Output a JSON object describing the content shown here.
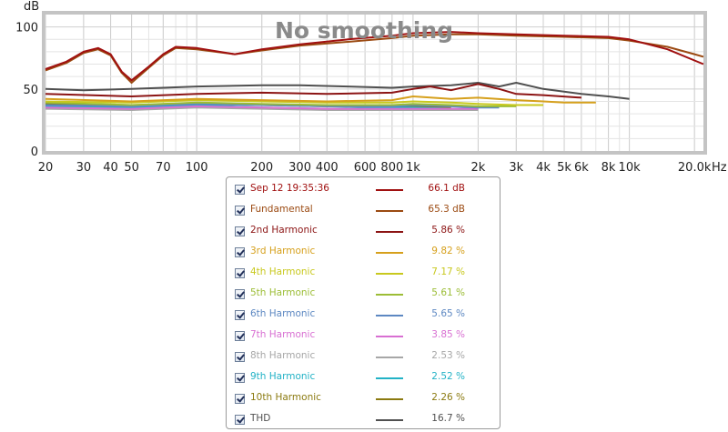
{
  "chart_data": {
    "type": "line",
    "title": "No smoothing",
    "ylabel": "dB",
    "xunit": "Hz",
    "xscale": "log",
    "xlim": [
      20,
      22000
    ],
    "ylim": [
      0,
      110
    ],
    "yticks": [
      0,
      50,
      100
    ],
    "ytick_labels": [
      "0",
      "50",
      "100"
    ],
    "xticks": [
      20,
      30,
      40,
      50,
      70,
      100,
      200,
      300,
      400,
      600,
      800,
      1000,
      2000,
      3000,
      4000,
      5000,
      6000,
      8000,
      10000,
      20000
    ],
    "xtick_labels": [
      "20",
      "30",
      "40",
      "50",
      "70",
      "100",
      "200",
      "300",
      "400",
      "600",
      "800",
      "1k",
      "2k",
      "3k",
      "4k",
      "5k",
      "6k",
      "8k",
      "10k",
      "20.0k"
    ],
    "grid": true,
    "legend_position": "bottom",
    "series": [
      {
        "name": "Sep 12 19:35:36",
        "value_label": "66.1 dB",
        "color": "#a01010",
        "x": [
          20,
          25,
          30,
          35,
          40,
          45,
          50,
          60,
          70,
          80,
          100,
          150,
          200,
          300,
          500,
          800,
          1000,
          1500,
          2000,
          3000,
          5000,
          8000,
          10000,
          15000,
          20000,
          22000
        ],
        "y": [
          66,
          72,
          80,
          83,
          78,
          64,
          57,
          68,
          78,
          84,
          83,
          78,
          82,
          86,
          90,
          93,
          95,
          96,
          95,
          94,
          93,
          92,
          90,
          82,
          73,
          70
        ]
      },
      {
        "name": "Fundamental",
        "value_label": "65.3 dB",
        "color": "#9b4a12",
        "x": [
          20,
          25,
          30,
          35,
          40,
          45,
          50,
          60,
          70,
          80,
          100,
          150,
          200,
          300,
          500,
          800,
          1000,
          1500,
          2000,
          3000,
          5000,
          8000,
          10000,
          15000,
          20000,
          22000
        ],
        "y": [
          65,
          71,
          79,
          82,
          77,
          63,
          55,
          67,
          77,
          83,
          82,
          78,
          81,
          85,
          88,
          91,
          93,
          94,
          94,
          93,
          92,
          91,
          89,
          84,
          78,
          76
        ]
      },
      {
        "name": "2nd Harmonic",
        "value_label": "5.86 %",
        "color": "#8c1414",
        "x": [
          20,
          50,
          100,
          200,
          400,
          800,
          1000,
          1200,
          1500,
          2000,
          2500,
          3000,
          4000,
          6000
        ],
        "y": [
          46,
          44,
          46,
          47,
          46,
          47,
          50,
          52,
          49,
          54,
          50,
          46,
          45,
          43
        ]
      },
      {
        "name": "3rd Harmonic",
        "value_label": "9.82 %",
        "color": "#d6a01c",
        "x": [
          20,
          50,
          100,
          200,
          400,
          800,
          1000,
          1500,
          2000,
          3000,
          4000,
          5000,
          7000
        ],
        "y": [
          42,
          40,
          42,
          41,
          40,
          41,
          44,
          42,
          43,
          41,
          40,
          39,
          39
        ]
      },
      {
        "name": "4th Harmonic",
        "value_label": "7.17 %",
        "color": "#c8c81e",
        "x": [
          20,
          50,
          100,
          200,
          400,
          800,
          1000,
          1500,
          2000,
          3000,
          4000
        ],
        "y": [
          40,
          39,
          41,
          40,
          39,
          39,
          40,
          39,
          38,
          37,
          37
        ]
      },
      {
        "name": "5th Harmonic",
        "value_label": "5.61 %",
        "color": "#9cbd36",
        "x": [
          20,
          50,
          100,
          200,
          400,
          800,
          1000,
          1500,
          2000,
          3000
        ],
        "y": [
          39,
          37,
          39,
          38,
          37,
          37,
          38,
          37,
          36,
          36
        ]
      },
      {
        "name": "6th Harmonic",
        "value_label": "5.65 %",
        "color": "#5d88c2",
        "x": [
          20,
          50,
          100,
          200,
          400,
          800,
          1000,
          1500,
          2000,
          2500
        ],
        "y": [
          37,
          36,
          38,
          37,
          36,
          36,
          37,
          36,
          35,
          35
        ]
      },
      {
        "name": "7th Harmonic",
        "value_label": "3.85 %",
        "color": "#d86fd2",
        "x": [
          20,
          50,
          100,
          200,
          400,
          800,
          1000,
          1500,
          2000
        ],
        "y": [
          35,
          34,
          36,
          35,
          34,
          34,
          34,
          34,
          34
        ]
      },
      {
        "name": "8th Harmonic",
        "value_label": "2.53 %",
        "color": "#a7a7a7",
        "x": [
          20,
          50,
          100,
          200,
          400,
          800,
          1000,
          1500,
          2000
        ],
        "y": [
          34,
          33,
          35,
          34,
          33,
          33,
          33,
          33,
          33
        ]
      },
      {
        "name": "9th Harmonic",
        "value_label": "2.52 %",
        "color": "#22b2c6",
        "x": [
          20,
          50,
          100,
          200,
          400,
          800,
          1000,
          1500,
          2000
        ],
        "y": [
          36,
          35,
          37,
          35,
          34,
          35,
          35,
          34,
          34
        ]
      },
      {
        "name": "10th Harmonic",
        "value_label": "2.26 %",
        "color": "#8b7a10",
        "x": [
          20,
          50,
          100,
          200,
          400,
          800,
          1000,
          1500
        ],
        "y": [
          38,
          37,
          38,
          37,
          36,
          36,
          36,
          35
        ]
      },
      {
        "name": "THD",
        "value_label": "16.7 %",
        "color": "#505050",
        "x": [
          20,
          30,
          50,
          70,
          100,
          200,
          300,
          500,
          800,
          1000,
          1500,
          2000,
          2500,
          3000,
          4000,
          6000,
          8000,
          10000
        ],
        "y": [
          50,
          49,
          50,
          51,
          52,
          53,
          53,
          52,
          51,
          52,
          53,
          55,
          52,
          55,
          50,
          46,
          44,
          42
        ]
      }
    ]
  }
}
